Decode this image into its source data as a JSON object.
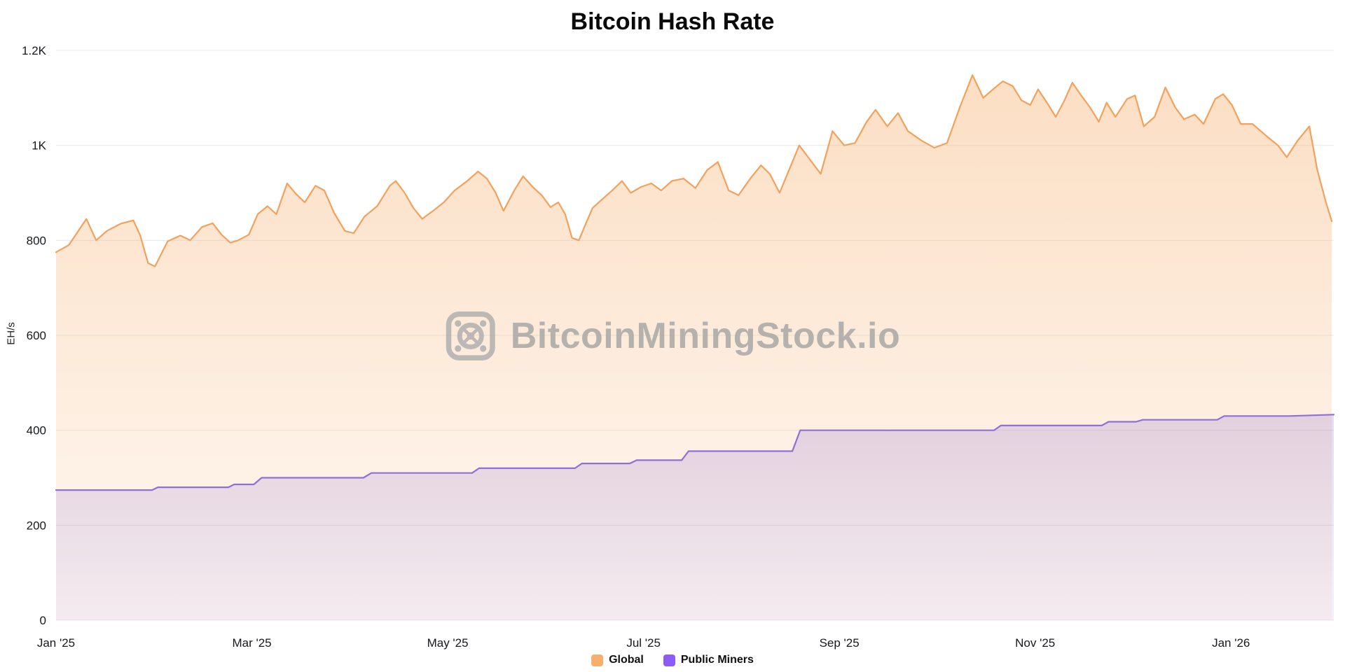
{
  "watermark": {
    "text": "BitcoinMiningStock.io"
  },
  "chart_data": {
    "type": "area",
    "title": "Bitcoin Hash Rate",
    "xlabel": "",
    "ylabel": "EH/s",
    "x_unit": "months since Jan 1 2025",
    "xlim": [
      0,
      13.05
    ],
    "ylim": [
      0,
      1200
    ],
    "grid": "horizontal",
    "legend_position": "bottom-center",
    "x_ticks": [
      {
        "value": 0,
        "label": "Jan '25"
      },
      {
        "value": 2,
        "label": "Mar '25"
      },
      {
        "value": 4,
        "label": "May '25"
      },
      {
        "value": 6,
        "label": "Jul '25"
      },
      {
        "value": 8,
        "label": "Sep '25"
      },
      {
        "value": 10,
        "label": "Nov '25"
      },
      {
        "value": 12,
        "label": "Jan '26"
      }
    ],
    "y_ticks": [
      {
        "value": 0,
        "label": "0"
      },
      {
        "value": 200,
        "label": "200"
      },
      {
        "value": 400,
        "label": "400"
      },
      {
        "value": 600,
        "label": "600"
      },
      {
        "value": 800,
        "label": "800"
      },
      {
        "value": 1000,
        "label": "1K"
      },
      {
        "value": 1200,
        "label": "1.2K"
      }
    ],
    "legend": [
      {
        "label": "Global",
        "color": "#F9AE6E"
      },
      {
        "label": "Public Miners",
        "color": "#8B5CF6"
      }
    ],
    "series": [
      {
        "name": "Global",
        "color": "#F2A25C",
        "fill_top": "rgba(247,173,106,0.40)",
        "fill_bottom": "rgba(247,173,106,0.08)",
        "points": [
          [
            0,
            775
          ],
          [
            0.13,
            790
          ],
          [
            0.31,
            845
          ],
          [
            0.41,
            800
          ],
          [
            0.52,
            820
          ],
          [
            0.66,
            835
          ],
          [
            0.79,
            842
          ],
          [
            0.86,
            810
          ],
          [
            0.94,
            752
          ],
          [
            1.01,
            745
          ],
          [
            1.14,
            798
          ],
          [
            1.27,
            810
          ],
          [
            1.37,
            800
          ],
          [
            1.49,
            828
          ],
          [
            1.6,
            836
          ],
          [
            1.69,
            812
          ],
          [
            1.78,
            795
          ],
          [
            1.86,
            800
          ],
          [
            1.97,
            812
          ],
          [
            2.06,
            855
          ],
          [
            2.16,
            872
          ],
          [
            2.25,
            855
          ],
          [
            2.36,
            920
          ],
          [
            2.45,
            898
          ],
          [
            2.54,
            880
          ],
          [
            2.65,
            915
          ],
          [
            2.74,
            905
          ],
          [
            2.84,
            858
          ],
          [
            2.95,
            820
          ],
          [
            3.04,
            815
          ],
          [
            3.15,
            850
          ],
          [
            3.28,
            872
          ],
          [
            3.41,
            915
          ],
          [
            3.47,
            925
          ],
          [
            3.56,
            900
          ],
          [
            3.65,
            868
          ],
          [
            3.74,
            845
          ],
          [
            3.85,
            862
          ],
          [
            3.96,
            880
          ],
          [
            4.07,
            905
          ],
          [
            4.2,
            925
          ],
          [
            4.31,
            945
          ],
          [
            4.4,
            930
          ],
          [
            4.49,
            900
          ],
          [
            4.57,
            862
          ],
          [
            4.68,
            905
          ],
          [
            4.77,
            935
          ],
          [
            4.87,
            912
          ],
          [
            4.96,
            895
          ],
          [
            5.05,
            870
          ],
          [
            5.13,
            880
          ],
          [
            5.2,
            855
          ],
          [
            5.27,
            805
          ],
          [
            5.34,
            800
          ],
          [
            5.41,
            835
          ],
          [
            5.48,
            868
          ],
          [
            5.57,
            885
          ],
          [
            5.68,
            905
          ],
          [
            5.78,
            925
          ],
          [
            5.87,
            900
          ],
          [
            5.97,
            912
          ],
          [
            6.08,
            920
          ],
          [
            6.18,
            905
          ],
          [
            6.29,
            925
          ],
          [
            6.41,
            930
          ],
          [
            6.53,
            910
          ],
          [
            6.65,
            948
          ],
          [
            6.76,
            965
          ],
          [
            6.87,
            905
          ],
          [
            6.97,
            895
          ],
          [
            7.09,
            930
          ],
          [
            7.2,
            958
          ],
          [
            7.29,
            940
          ],
          [
            7.39,
            900
          ],
          [
            7.5,
            955
          ],
          [
            7.59,
            1000
          ],
          [
            7.7,
            970
          ],
          [
            7.81,
            940
          ],
          [
            7.93,
            1030
          ],
          [
            8.05,
            1000
          ],
          [
            8.16,
            1005
          ],
          [
            8.28,
            1050
          ],
          [
            8.37,
            1075
          ],
          [
            8.49,
            1040
          ],
          [
            8.6,
            1068
          ],
          [
            8.7,
            1030
          ],
          [
            8.84,
            1010
          ],
          [
            8.97,
            995
          ],
          [
            9.1,
            1005
          ],
          [
            9.23,
            1080
          ],
          [
            9.36,
            1148
          ],
          [
            9.47,
            1100
          ],
          [
            9.58,
            1120
          ],
          [
            9.67,
            1135
          ],
          [
            9.77,
            1125
          ],
          [
            9.86,
            1095
          ],
          [
            9.95,
            1085
          ],
          [
            10.03,
            1118
          ],
          [
            10.12,
            1090
          ],
          [
            10.21,
            1060
          ],
          [
            10.3,
            1095
          ],
          [
            10.38,
            1132
          ],
          [
            10.47,
            1105
          ],
          [
            10.56,
            1080
          ],
          [
            10.65,
            1050
          ],
          [
            10.73,
            1090
          ],
          [
            10.82,
            1060
          ],
          [
            10.94,
            1098
          ],
          [
            11.02,
            1105
          ],
          [
            11.11,
            1040
          ],
          [
            11.22,
            1060
          ],
          [
            11.33,
            1122
          ],
          [
            11.43,
            1080
          ],
          [
            11.52,
            1055
          ],
          [
            11.63,
            1065
          ],
          [
            11.72,
            1045
          ],
          [
            11.84,
            1098
          ],
          [
            11.92,
            1108
          ],
          [
            12.01,
            1085
          ],
          [
            12.1,
            1045
          ],
          [
            12.22,
            1045
          ],
          [
            12.36,
            1020
          ],
          [
            12.48,
            1000
          ],
          [
            12.57,
            975
          ],
          [
            12.68,
            1010
          ],
          [
            12.8,
            1040
          ],
          [
            12.88,
            950
          ],
          [
            12.97,
            880
          ],
          [
            13.03,
            840
          ]
        ]
      },
      {
        "name": "Public Miners",
        "color": "#8F6FD8",
        "fill_top": "rgba(148,118,211,0.25)",
        "fill_bottom": "rgba(148,118,211,0.10)",
        "points": [
          [
            0,
            274
          ],
          [
            0.98,
            274
          ],
          [
            1.04,
            280
          ],
          [
            1.76,
            280
          ],
          [
            1.82,
            286
          ],
          [
            2.02,
            286
          ],
          [
            2.1,
            300
          ],
          [
            3.14,
            300
          ],
          [
            3.22,
            310
          ],
          [
            4.25,
            310
          ],
          [
            4.32,
            320
          ],
          [
            5.3,
            320
          ],
          [
            5.37,
            330
          ],
          [
            5.86,
            330
          ],
          [
            5.93,
            337
          ],
          [
            6.39,
            337
          ],
          [
            6.46,
            356
          ],
          [
            7.52,
            356
          ],
          [
            7.6,
            400
          ],
          [
            9.58,
            400
          ],
          [
            9.65,
            410
          ],
          [
            10.68,
            410
          ],
          [
            10.75,
            418
          ],
          [
            11.03,
            418
          ],
          [
            11.1,
            422
          ],
          [
            11.86,
            422
          ],
          [
            11.93,
            430
          ],
          [
            12.6,
            430
          ],
          [
            13.05,
            433
          ]
        ]
      }
    ]
  }
}
